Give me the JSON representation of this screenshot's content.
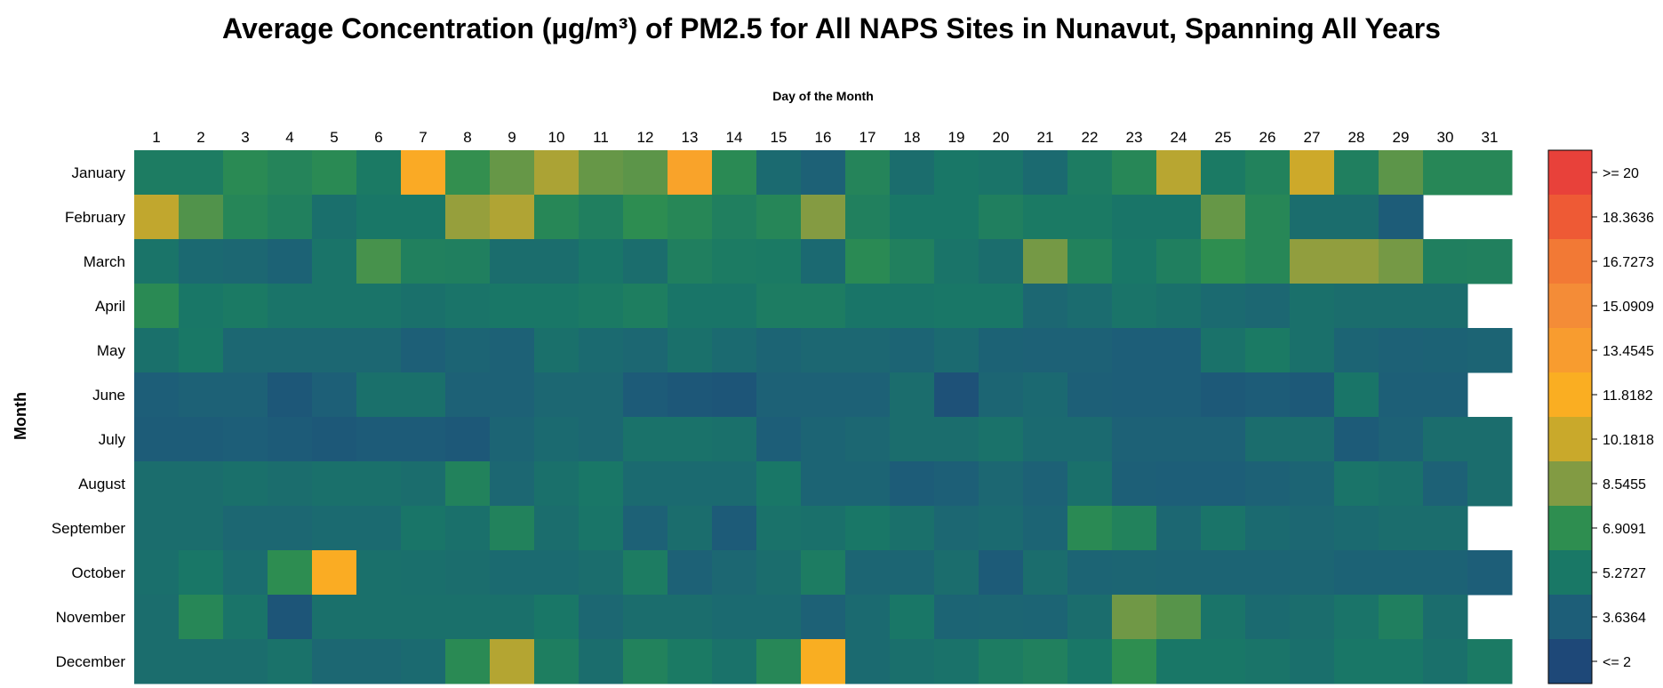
{
  "chart_data": {
    "type": "heatmap",
    "title": "Average Concentration (µg/m³) of PM2.5 for All NAPS Sites in Nunavut, Spanning All Years",
    "xlabel": "Day of the Month",
    "ylabel": "Month",
    "x": [
      "1",
      "2",
      "3",
      "4",
      "5",
      "6",
      "7",
      "8",
      "9",
      "10",
      "11",
      "12",
      "13",
      "14",
      "15",
      "16",
      "17",
      "18",
      "19",
      "20",
      "21",
      "22",
      "23",
      "24",
      "25",
      "26",
      "27",
      "28",
      "29",
      "30",
      "31"
    ],
    "y": [
      "January",
      "February",
      "March",
      "April",
      "May",
      "June",
      "July",
      "August",
      "September",
      "October",
      "November",
      "December"
    ],
    "values": [
      [
        5.6,
        5.6,
        6.6,
        6.2,
        6.6,
        5.4,
        12.2,
        7.0,
        8.0,
        9.5,
        8.0,
        7.8,
        12.8,
        6.6,
        4.4,
        3.8,
        6.2,
        4.6,
        5.2,
        5.0,
        4.4,
        5.6,
        6.4,
        9.8,
        5.4,
        6.0,
        10.3,
        5.8,
        7.8,
        6.4,
        6.4
      ],
      [
        10.0,
        7.6,
        6.3,
        5.9,
        4.7,
        5.2,
        5.2,
        9.0,
        9.6,
        6.4,
        5.8,
        6.8,
        6.4,
        5.8,
        6.3,
        8.6,
        5.9,
        5.2,
        5.2,
        5.8,
        5.4,
        5.4,
        5.1,
        5.1,
        8.0,
        6.4,
        4.6,
        4.6,
        3.5,
        null,
        null
      ],
      [
        5.0,
        4.3,
        4.2,
        3.9,
        5.0,
        7.4,
        5.9,
        5.8,
        4.6,
        4.6,
        5.1,
        4.6,
        5.8,
        5.5,
        5.4,
        4.3,
        6.6,
        5.9,
        5.0,
        4.6,
        8.3,
        6.0,
        5.2,
        5.8,
        6.9,
        6.4,
        8.9,
        8.9,
        8.3,
        5.8,
        5.9
      ],
      [
        6.6,
        5.2,
        5.4,
        5.0,
        5.0,
        5.0,
        4.8,
        5.0,
        5.2,
        5.2,
        5.4,
        5.7,
        5.1,
        5.1,
        5.6,
        5.6,
        5.1,
        5.1,
        5.2,
        5.2,
        4.2,
        4.5,
        5.0,
        4.8,
        4.4,
        4.2,
        4.8,
        4.6,
        4.6,
        4.6,
        null
      ],
      [
        4.8,
        5.3,
        4.2,
        4.2,
        4.2,
        4.2,
        3.7,
        4.0,
        3.8,
        4.8,
        4.4,
        4.2,
        4.8,
        4.4,
        4.0,
        4.2,
        4.2,
        4.0,
        4.4,
        3.9,
        3.8,
        3.8,
        3.6,
        3.6,
        4.9,
        5.4,
        4.8,
        4.0,
        3.8,
        3.9,
        4.0
      ],
      [
        3.6,
        3.8,
        3.8,
        3.1,
        3.7,
        4.8,
        4.8,
        3.8,
        3.8,
        4.2,
        4.2,
        3.4,
        3.1,
        3.0,
        3.8,
        3.8,
        3.8,
        4.6,
        2.7,
        4.1,
        4.3,
        3.7,
        3.6,
        3.6,
        3.3,
        3.5,
        3.3,
        5.1,
        3.7,
        3.7,
        null
      ],
      [
        3.5,
        3.5,
        3.6,
        3.4,
        3.2,
        3.4,
        3.4,
        3.2,
        4.0,
        4.4,
        4.2,
        4.9,
        4.9,
        4.8,
        3.6,
        4.0,
        4.2,
        4.6,
        4.6,
        4.9,
        4.4,
        4.4,
        3.8,
        3.8,
        3.8,
        4.6,
        4.6,
        3.4,
        3.8,
        4.6,
        4.6
      ],
      [
        4.6,
        4.6,
        4.8,
        4.6,
        4.8,
        4.8,
        4.6,
        6.0,
        4.2,
        4.8,
        5.2,
        4.4,
        4.4,
        4.4,
        5.2,
        4.0,
        4.0,
        3.5,
        3.7,
        4.2,
        3.8,
        4.8,
        3.7,
        3.6,
        3.6,
        3.8,
        4.0,
        5.0,
        4.8,
        3.8,
        4.6
      ],
      [
        4.6,
        4.6,
        4.2,
        4.2,
        4.4,
        4.4,
        5.1,
        4.8,
        6.0,
        4.6,
        5.1,
        3.8,
        4.6,
        3.4,
        4.9,
        4.8,
        5.2,
        4.8,
        4.2,
        4.4,
        4.0,
        6.6,
        6.0,
        4.2,
        5.0,
        4.4,
        4.2,
        4.4,
        4.6,
        4.6,
        null
      ],
      [
        4.7,
        5.2,
        4.5,
        6.8,
        12.0,
        4.8,
        4.7,
        4.6,
        4.4,
        4.4,
        4.6,
        5.6,
        3.8,
        4.2,
        4.6,
        5.6,
        4.1,
        4.1,
        4.6,
        3.4,
        4.6,
        4.0,
        4.1,
        4.0,
        4.0,
        4.0,
        4.1,
        3.9,
        3.9,
        3.9,
        3.6
      ],
      [
        4.6,
        6.4,
        5.0,
        3.0,
        4.8,
        4.8,
        4.8,
        4.8,
        4.8,
        5.2,
        4.2,
        4.6,
        4.6,
        4.4,
        4.4,
        3.8,
        4.4,
        5.2,
        4.0,
        4.1,
        4.0,
        4.6,
        8.2,
        7.7,
        5.0,
        4.4,
        4.6,
        5.0,
        5.8,
        4.6,
        null
      ],
      [
        4.6,
        4.6,
        4.6,
        4.9,
        4.2,
        4.2,
        4.4,
        6.6,
        9.7,
        5.7,
        4.6,
        6.0,
        5.4,
        4.9,
        6.4,
        11.8,
        4.4,
        4.7,
        4.9,
        5.6,
        5.9,
        5.2,
        6.9,
        5.2,
        5.2,
        5.0,
        4.7,
        5.2,
        5.2,
        4.8,
        5.4
      ]
    ],
    "colorbar": {
      "labels": [
        ">= 20",
        "18.3636",
        "16.7273",
        "15.0909",
        "13.4545",
        "11.8182",
        "10.1818",
        "8.5455",
        "6.9091",
        "5.2727",
        "3.6364",
        "<= 2"
      ],
      "colors": [
        "#E8413A",
        "#EE5A35",
        "#F27935",
        "#F48C37",
        "#F89C2F",
        "#FAAE22",
        "#C9A92B",
        "#829B43",
        "#2E8E50",
        "#197866",
        "#1D5E78",
        "#1E4878"
      ],
      "min": 2,
      "max": 20
    }
  }
}
